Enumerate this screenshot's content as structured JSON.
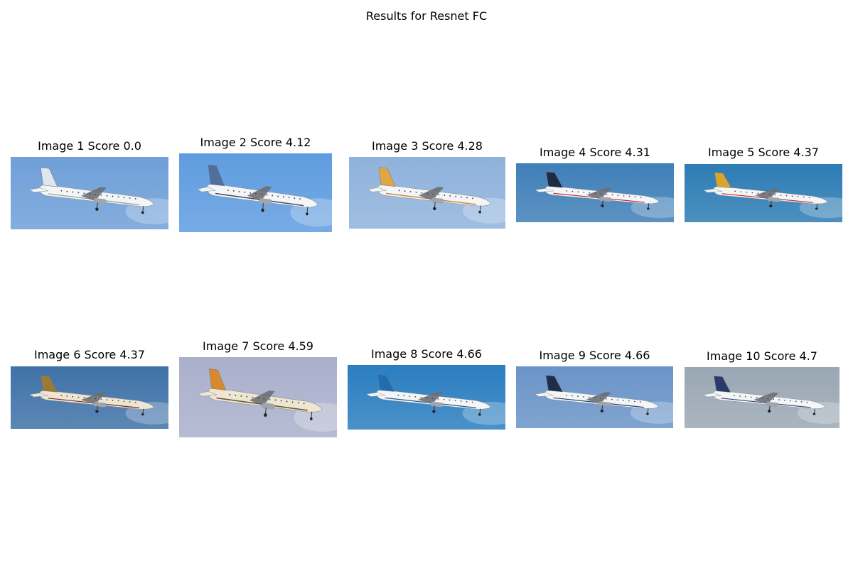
{
  "figure": {
    "title": "Results for Resnet FC"
  },
  "results": [
    {
      "label": "Image 1 Score 0.0",
      "subject": "turboprop-airliner-photo",
      "sky": "#6f9fd8",
      "livery": "white",
      "tail": "#dfe6ee",
      "accent": "#9aa6b2"
    },
    {
      "label": "Image 2 Score 4.12",
      "subject": "turboprop-airliner-photo",
      "sky": "#5f9ce0",
      "livery": "white",
      "tail": "#4f6f9c",
      "accent": "#3a4a66"
    },
    {
      "label": "Image 3 Score 4.28",
      "subject": "turboprop-airliner-photo",
      "sky": "#8fb2dc",
      "livery": "white",
      "tail": "#e2a640",
      "accent": "#c7803a"
    },
    {
      "label": "Image 4 Score 4.31",
      "subject": "jet-airliner-photo",
      "sky": "#3f7fb8",
      "livery": "white",
      "tail": "#1f2a44",
      "accent": "#b8243a"
    },
    {
      "label": "Image 5 Score 4.37",
      "subject": "jet-airliner-photo",
      "sky": "#2d7cb4",
      "livery": "white",
      "tail": "#d9a52a",
      "accent": "#c8281e"
    },
    {
      "label": "Image 6 Score 4.37",
      "subject": "jet-airliner-photo",
      "sky": "#3f72a8",
      "livery": "cream",
      "tail": "#9a7a3a",
      "accent": "#7a2a2a"
    },
    {
      "label": "Image 7 Score 4.59",
      "subject": "turboprop-airliner-photo",
      "sky": "#aab0cc",
      "livery": "cream",
      "tail": "#d88a2a",
      "accent": "#6a5a3a"
    },
    {
      "label": "Image 8 Score 4.66",
      "subject": "jet-airliner-photo",
      "sky": "#2a7ec0",
      "livery": "white",
      "tail": "#1f6fb0",
      "accent": "#1f5a90"
    },
    {
      "label": "Image 9 Score 4.66",
      "subject": "jumbo-jet-photo",
      "sky": "#6a94c8",
      "livery": "white",
      "tail": "#1d2d4a",
      "accent": "#2a3a6a"
    },
    {
      "label": "Image 10 Score 4.7",
      "subject": "jet-airliner-photo",
      "sky": "#9aa7b4",
      "livery": "white",
      "tail": "#2a3a6a",
      "accent": "#3a4a7a"
    }
  ]
}
